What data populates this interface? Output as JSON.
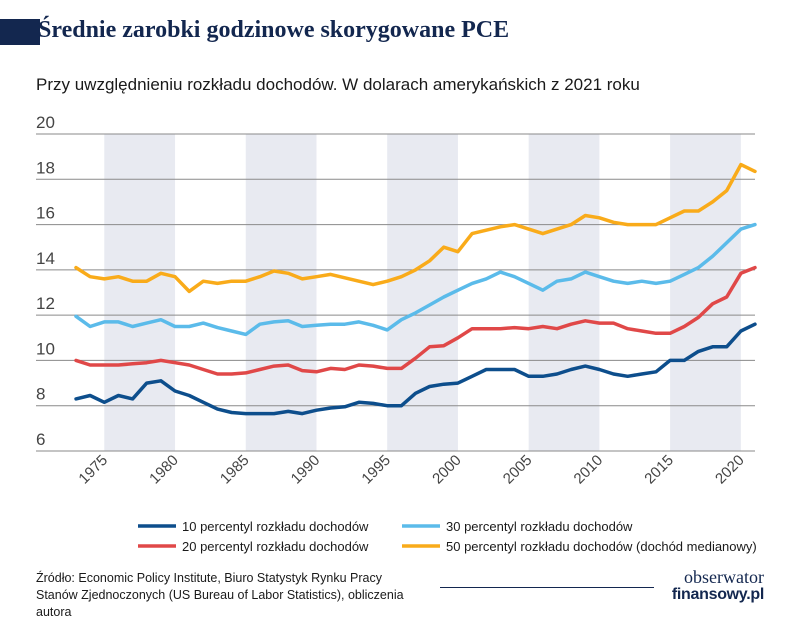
{
  "header": {
    "title": "Średnie zarobki godzinowe skorygowane PCE",
    "subtitle": "Przy uwzględnieniu rozkładu dochodów. W dolarach amerykańskich z 2021 roku"
  },
  "chart_data": {
    "type": "line",
    "title": "Średnie zarobki godzinowe skorygowane PCE",
    "subtitle": "Przy uwzględnieniu rozkładu dochodów. W dolarach amerykańskich z 2021 roku",
    "xlabel": "",
    "ylabel": "",
    "xlim": [
      1973,
      2021
    ],
    "ylim": [
      6,
      20
    ],
    "yticks": [
      6,
      8,
      10,
      12,
      14,
      16,
      18,
      20
    ],
    "xticks": [
      1975,
      1980,
      1985,
      1990,
      1995,
      2000,
      2005,
      2010,
      2015,
      2020
    ],
    "grid": true,
    "recession_bands": [
      [
        1975,
        1980
      ],
      [
        1985,
        1990
      ],
      [
        1995,
        2000
      ],
      [
        2005,
        2010
      ],
      [
        2015,
        2020
      ]
    ],
    "x": [
      1973,
      1974,
      1975,
      1976,
      1977,
      1978,
      1979,
      1980,
      1981,
      1982,
      1983,
      1984,
      1985,
      1986,
      1987,
      1988,
      1989,
      1990,
      1991,
      1992,
      1993,
      1994,
      1995,
      1996,
      1997,
      1998,
      1999,
      2000,
      2001,
      2002,
      2003,
      2004,
      2005,
      2006,
      2007,
      2008,
      2009,
      2010,
      2011,
      2012,
      2013,
      2014,
      2015,
      2016,
      2017,
      2018,
      2019,
      2020,
      2021
    ],
    "series": [
      {
        "name": "10 percentyl rozkładu dochodów",
        "color": "#0d4e8c",
        "values": [
          8.3,
          8.45,
          8.15,
          8.45,
          8.3,
          9.0,
          9.1,
          8.65,
          8.45,
          8.15,
          7.85,
          7.7,
          7.65,
          7.65,
          7.65,
          7.75,
          7.65,
          7.8,
          7.9,
          7.95,
          8.15,
          8.1,
          8.0,
          8.0,
          8.55,
          8.85,
          8.95,
          9.0,
          9.3,
          9.6,
          9.6,
          9.6,
          9.3,
          9.3,
          9.4,
          9.6,
          9.75,
          9.6,
          9.4,
          9.3,
          9.4,
          9.5,
          10.0,
          10.0,
          10.4,
          10.6,
          10.6,
          11.3,
          11.6
        ]
      },
      {
        "name": "30 percentyl rozkładu dochodów",
        "color": "#5bbbea",
        "values": [
          11.95,
          11.5,
          11.7,
          11.7,
          11.5,
          11.65,
          11.8,
          11.5,
          11.5,
          11.65,
          11.45,
          11.3,
          11.15,
          11.6,
          11.7,
          11.75,
          11.5,
          11.55,
          11.6,
          11.6,
          11.7,
          11.55,
          11.35,
          11.8,
          12.1,
          12.45,
          12.8,
          13.1,
          13.4,
          13.6,
          13.9,
          13.7,
          13.4,
          13.1,
          13.5,
          13.6,
          13.9,
          13.7,
          13.5,
          13.4,
          13.5,
          13.4,
          13.5,
          13.8,
          14.1,
          14.6,
          15.2,
          15.8,
          16.0
        ]
      },
      {
        "name": "20 percentyl rozkładu dochodów",
        "color": "#e04848",
        "values": [
          10.0,
          9.8,
          9.8,
          9.8,
          9.85,
          9.9,
          10.0,
          9.9,
          9.8,
          9.6,
          9.4,
          9.4,
          9.45,
          9.6,
          9.75,
          9.8,
          9.55,
          9.5,
          9.65,
          9.6,
          9.8,
          9.75,
          9.65,
          9.65,
          10.1,
          10.6,
          10.65,
          11.0,
          11.4,
          11.4,
          11.4,
          11.45,
          11.4,
          11.5,
          11.4,
          11.6,
          11.75,
          11.65,
          11.65,
          11.4,
          11.3,
          11.2,
          11.2,
          11.5,
          11.9,
          12.5,
          12.8,
          13.85,
          14.1
        ]
      },
      {
        "name": "50 percentyl rozkładu dochodów (dochód medianowy)",
        "color": "#f9ab1a",
        "values": [
          14.1,
          13.7,
          13.6,
          13.7,
          13.5,
          13.5,
          13.85,
          13.7,
          13.05,
          13.5,
          13.4,
          13.5,
          13.5,
          13.7,
          13.95,
          13.85,
          13.6,
          13.7,
          13.8,
          13.65,
          13.5,
          13.35,
          13.5,
          13.7,
          14.0,
          14.4,
          15.0,
          14.8,
          15.6,
          15.75,
          15.9,
          16.0,
          15.8,
          15.6,
          15.8,
          16.0,
          16.4,
          16.3,
          16.1,
          16.0,
          16.0,
          16.0,
          16.3,
          16.6,
          16.6,
          17.0,
          17.5,
          18.65,
          18.35
        ]
      }
    ]
  },
  "legend": {
    "items": [
      {
        "label": "10 percentyl rozkładu dochodów",
        "color": "#0d4e8c"
      },
      {
        "label": "30 percentyl rozkładu dochodów",
        "color": "#5bbbea"
      },
      {
        "label": "20 percentyl rozkładu dochodów",
        "color": "#e04848"
      },
      {
        "label": "50 percentyl rozkładu dochodów (dochód medianowy)",
        "color": "#f9ab1a"
      }
    ]
  },
  "footer": {
    "source_line1": "Źródło: Economic Policy Institute, Biuro Statystyk Rynku Pracy",
    "source_line2": "Stanów Zjednoczonych (US Bureau of Labor Statistics), obliczenia autora",
    "logo_line1": "obserwator",
    "logo_line2": "finansowy.pl"
  },
  "style": {
    "title_color": "#13274f",
    "band_color": "#e8eaf1",
    "grid_color": "#8a8a8a",
    "text_color": "#444444"
  }
}
